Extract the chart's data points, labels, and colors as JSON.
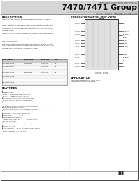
{
  "title_brand": "MITSUBISHI MICROCOMPUTERS",
  "title_main": "7470/7471 Group",
  "subtitle": "SINGLE-CHIP 8-BIT CMOS MICROCOMPUTER",
  "bg_color": "#ffffff",
  "pin_config_title": "PIN CONFIGURATION (TOP VIEW)",
  "pin_labels_left": [
    "P00/AD0",
    "P01/AD1",
    "P02/AD2",
    "P03/AD3",
    "P04/AD4",
    "P05/AD5",
    "P06/AD6",
    "P07/AD7",
    "P10/A8",
    "P11/A9",
    "P12/A10",
    "P13/A11",
    "P14/A12",
    "P15/A13",
    "P16/A14",
    "P17/A15"
  ],
  "pin_labels_right": [
    "VCC",
    "P67/XT1",
    "P66/XT2",
    "P65/HOLD",
    "P64/HLDA",
    "P63/WR",
    "P62/RD",
    "P61/ALE",
    "P60/INT0",
    "P57/INT1",
    "P56/INT2",
    "P55/NMI",
    "P54/RESET",
    "P53",
    "P52",
    "VSS"
  ],
  "outline_label": "Outline: 32P4B",
  "application_title": "APPLICATION",
  "app_lines": [
    "Audio/video equipment, VCR, Tuner",
    "Office automation equipment"
  ],
  "desc_title": "DESCRIPTION",
  "desc_lines": [
    "The 7470/7471 group is a single-chip microcomputer designed",
    "with CMOS silicon gate technology. It is housed in a 32-pin shrink",
    "dual-inline (SP). The M37470M1XXXSP is a single-chip 8-bit",
    "microcomputer designed with CMOS silicon gate technology. It is",
    "housed in a 42-pin shrink-plastic-interlined (SP) in a 64-pin plastic",
    "package (QFP).",
    "",
    "These single-chip microcomputers are used for home automation,",
    "mouse and other consumer applications.",
    "In addition to the precise instructions set, the M7470, M7470",
    "microcomputer is planned to the standard memory range to execute",
    "many programming.",
    "The M37470M1XXXSP implements the M37471E4-XXXSP and the",
    "M37471E6-XXXFP and the package outline within the volume: This",
    "package being selectable: (processor voltage)",
    "",
    "This differential velocity: M37470M1XXXSP. M37470M1XXXFP is",
    "a 64-kbyte x 8-bit ROM and 1-kbyte SRAM cycle to use one byte",
    "Of the M37470 SRAM XXXXXFP are on-board below."
  ],
  "table_headers": [
    "Type name",
    "ROM size",
    "RAM size",
    "Pin"
  ],
  "table_rows": [
    [
      "M37470M2-XXXSP",
      "4096 bytes",
      "128 bytes",
      "32"
    ],
    [
      "M37471E4-XXXFP",
      "",
      "128 bytes",
      "32"
    ],
    [
      "M37471E6-XXXFP",
      "",
      "",
      ""
    ],
    [
      "M37471M1-XXXSP",
      "8192 bytes",
      "192 bytes",
      "42"
    ],
    [
      "M37470M1-XXXFP",
      "",
      "",
      ""
    ],
    [
      "M37470M5-XXXSP",
      "16384 bytes",
      "512 bytes",
      "64"
    ],
    [
      "M37471M5-XXXFP",
      "",
      "",
      ""
    ]
  ],
  "feat_title": "FEATURES",
  "feat_lines": [
    "■Basic machine language instructions ............... 71",
    "■Memory size:",
    "   ROM ..... 4096 bytes (M37471E4-SP)",
    "   RAM ..... 128 bytes (M37471E4-SP)",
    "■The minimum instruction execution time:",
    "   375 ns at 8 MHz oscillation (frequency)",
    "■Power source voltage:",
    "   2.7 to 5.5V (at 2.7 to 5.5V): 2nd timer oscillation frequency)",
    "   3.5 to 5.5V (crystal timer oscillation frequency)",
    "■Power dissipation in voltage:",
    "   65 mW (at 5V when clock oscillation frequency)",
    "■Subchannel clocking: ... the pulse rate (M37470M1, M37470M2)",
    "■Interrupt ..... 12 sources, 12 vectors",
    "■Oscillation ....................... 8",
    "■Programmable I/O ports:",
    "   (Port1, Port, P3, P4, P5) ............. 8270(0 ports)",
    "   28(I/O) (general)",
    "■Timer unit (T/C/F/I) ..... 8270(0 ports)",
    "   (Timers: T1, T2) ......... 24(I/O) (general)",
    "■Serial (AX/AY/B)",
    "■A-D converter: ..... 8-ch, Automatic (8-bit) (range)",
    "   8-bit: Automatic (5V): (11.5 us)"
  ]
}
